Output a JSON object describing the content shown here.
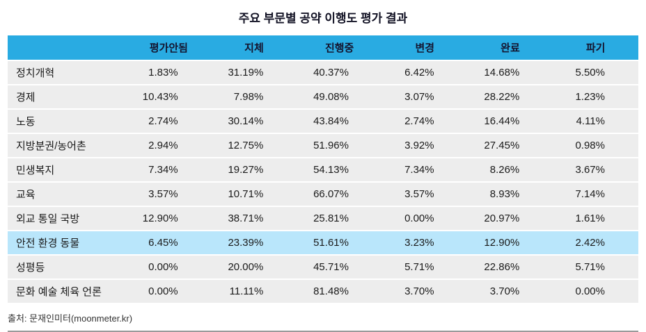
{
  "title": "주요 부문별 공약 이행도 평가 결과",
  "footer": {
    "source": "출처: 문재인미터(moonmeter.kr)"
  },
  "colors": {
    "header_bg": "#29abe2",
    "row_bg": "#ededed",
    "highlight_row_bg": "#b9e6fb",
    "title_text": "#121224"
  },
  "chart_data": {
    "type": "table",
    "title": "주요 부문별 공약 이행도 평가 결과",
    "columns": [
      "",
      "평가안됨",
      "지체",
      "진행중",
      "변경",
      "완료",
      "파기"
    ],
    "rows": [
      {
        "label": "정치개혁",
        "values": [
          "1.83%",
          "31.19%",
          "40.37%",
          "6.42%",
          "14.68%",
          "5.50%"
        ],
        "highlight": false
      },
      {
        "label": "경제",
        "values": [
          "10.43%",
          "7.98%",
          "49.08%",
          "3.07%",
          "28.22%",
          "1.23%"
        ],
        "highlight": false
      },
      {
        "label": "노동",
        "values": [
          "2.74%",
          "30.14%",
          "43.84%",
          "2.74%",
          "16.44%",
          "4.11%"
        ],
        "highlight": false
      },
      {
        "label": "지방분권/농어촌",
        "values": [
          "2.94%",
          "12.75%",
          "51.96%",
          "3.92%",
          "27.45%",
          "0.98%"
        ],
        "highlight": false
      },
      {
        "label": "민생복지",
        "values": [
          "7.34%",
          "19.27%",
          "54.13%",
          "7.34%",
          "8.26%",
          "3.67%"
        ],
        "highlight": false
      },
      {
        "label": "교육",
        "values": [
          "3.57%",
          "10.71%",
          "66.07%",
          "3.57%",
          "8.93%",
          "7.14%"
        ],
        "highlight": false
      },
      {
        "label": "외교 통일 국방",
        "values": [
          "12.90%",
          "38.71%",
          "25.81%",
          "0.00%",
          "20.97%",
          "1.61%"
        ],
        "highlight": false
      },
      {
        "label": "안전 환경 동물",
        "values": [
          "6.45%",
          "23.39%",
          "51.61%",
          "3.23%",
          "12.90%",
          "2.42%"
        ],
        "highlight": true
      },
      {
        "label": "성평등",
        "values": [
          "0.00%",
          "20.00%",
          "45.71%",
          "5.71%",
          "22.86%",
          "5.71%"
        ],
        "highlight": false
      },
      {
        "label": "문화 예술 체육 언론",
        "values": [
          "0.00%",
          "11.11%",
          "81.48%",
          "3.70%",
          "3.70%",
          "0.00%"
        ],
        "highlight": false
      }
    ]
  }
}
